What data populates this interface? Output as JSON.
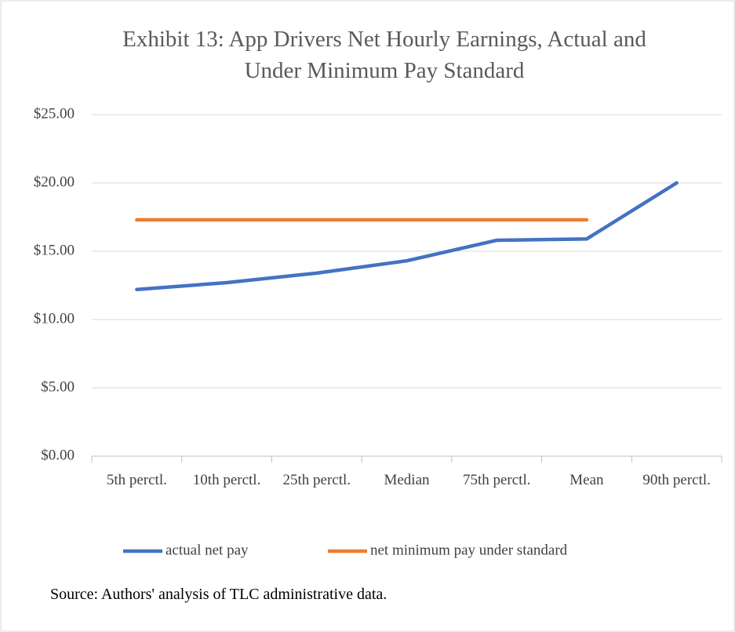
{
  "chart_data": {
    "type": "line",
    "title": "Exhibit 13: App Drivers Net Hourly Earnings, Actual and Under Minimum Pay Standard",
    "categories": [
      "5th perctl.",
      "10th perctl.",
      "25th perctl.",
      "Median",
      "75th perctl.",
      "Mean",
      "90th perctl."
    ],
    "series": [
      {
        "name": "actual net pay",
        "color": "#4472c4",
        "values": [
          12.2,
          12.7,
          13.4,
          14.3,
          15.8,
          15.9,
          20.0
        ]
      },
      {
        "name": "net minimum pay under standard",
        "color": "#ed7d31",
        "values": [
          17.3,
          17.3,
          17.3,
          17.3,
          17.3,
          17.3,
          null
        ]
      }
    ],
    "ylim": [
      0,
      25
    ],
    "yticks": [
      {
        "value": 0,
        "label": "$0.00"
      },
      {
        "value": 5,
        "label": "$5.00"
      },
      {
        "value": 10,
        "label": "$10.00"
      },
      {
        "value": 15,
        "label": "$15.00"
      },
      {
        "value": 20,
        "label": "$20.00"
      },
      {
        "value": 25,
        "label": "$25.00"
      }
    ],
    "grid": true,
    "legend": "bottom",
    "source": "Source: Authors' analysis of TLC administrative data."
  }
}
